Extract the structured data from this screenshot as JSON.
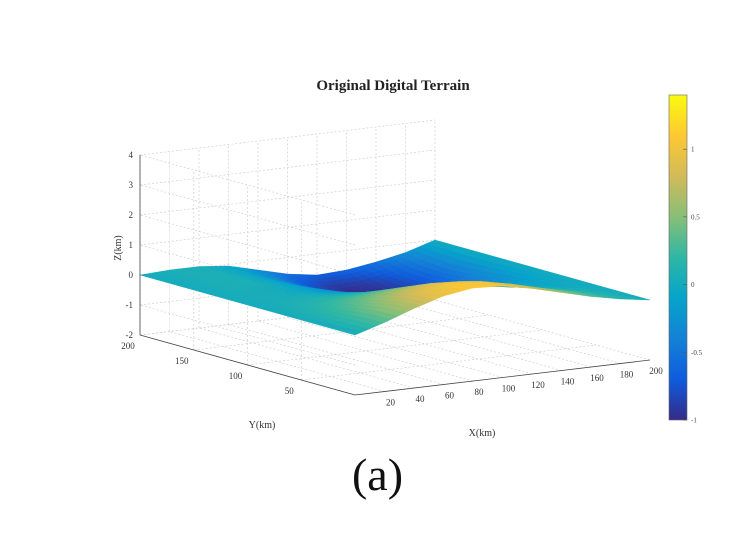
{
  "caption": "(a)",
  "chart_data": {
    "type": "surface",
    "title": "Original Digital Terrain",
    "xlabel": "X(km)",
    "ylabel": "Y(km)",
    "zlabel": "Z(km)",
    "xlim": [
      0,
      200
    ],
    "ylim": [
      0,
      200
    ],
    "zlim": [
      -2,
      4
    ],
    "x_ticks": [
      "20",
      "40",
      "60",
      "80",
      "100",
      "120",
      "140",
      "160",
      "180",
      "200"
    ],
    "y_ticks": [
      "50",
      "100",
      "150",
      "200"
    ],
    "z_ticks": [
      "-2",
      "-1",
      "0",
      "1",
      "2",
      "3",
      "4"
    ],
    "grid": true,
    "colormap": "parula",
    "colorbar": {
      "range": [
        -1.0,
        1.4
      ],
      "ticks": [
        "-1",
        "-0.5",
        "0",
        "0.5",
        "1"
      ],
      "colors": [
        "#352a87",
        "#0f5cdd",
        "#1481d6",
        "#06a4ca",
        "#2eb7a4",
        "#87bf77",
        "#d1bb59",
        "#fec832",
        "#f9fb0e"
      ]
    },
    "surface": {
      "x": [
        0,
        20,
        40,
        60,
        80,
        100,
        120,
        140,
        160,
        180,
        200
      ],
      "y": [
        0,
        20,
        40,
        60,
        80,
        100,
        120,
        140,
        160,
        180,
        200
      ],
      "z": [
        [
          0.0,
          0.3,
          0.65,
          0.95,
          1.1,
          1.05,
          0.85,
          0.6,
          0.35,
          0.15,
          0.0
        ],
        [
          0.0,
          0.28,
          0.6,
          0.9,
          1.05,
          1.0,
          0.8,
          0.55,
          0.32,
          0.12,
          0.0
        ],
        [
          0.0,
          0.22,
          0.45,
          0.7,
          0.85,
          0.8,
          0.6,
          0.4,
          0.2,
          0.05,
          0.0
        ],
        [
          0.0,
          0.15,
          0.3,
          0.45,
          0.55,
          0.5,
          0.35,
          0.2,
          0.05,
          -0.05,
          0.0
        ],
        [
          0.0,
          0.08,
          0.15,
          0.2,
          0.25,
          0.2,
          0.1,
          0.0,
          -0.1,
          -0.1,
          0.0
        ],
        [
          0.0,
          0.05,
          0.05,
          0.0,
          -0.05,
          -0.1,
          -0.2,
          -0.3,
          -0.3,
          -0.2,
          0.0
        ],
        [
          0.0,
          0.05,
          0.0,
          -0.1,
          -0.25,
          -0.4,
          -0.5,
          -0.55,
          -0.5,
          -0.3,
          0.0
        ],
        [
          0.0,
          0.05,
          0.05,
          -0.1,
          -0.35,
          -0.65,
          -0.8,
          -0.8,
          -0.65,
          -0.4,
          0.0
        ],
        [
          0.0,
          0.05,
          0.05,
          -0.1,
          -0.45,
          -0.8,
          -1.0,
          -0.95,
          -0.75,
          -0.45,
          0.0
        ],
        [
          0.0,
          0.05,
          0.05,
          -0.1,
          -0.4,
          -0.75,
          -0.95,
          -0.9,
          -0.7,
          -0.4,
          0.0
        ],
        [
          0.0,
          0.05,
          0.05,
          -0.05,
          -0.3,
          -0.55,
          -0.7,
          -0.65,
          -0.5,
          -0.3,
          0.0
        ]
      ]
    }
  }
}
